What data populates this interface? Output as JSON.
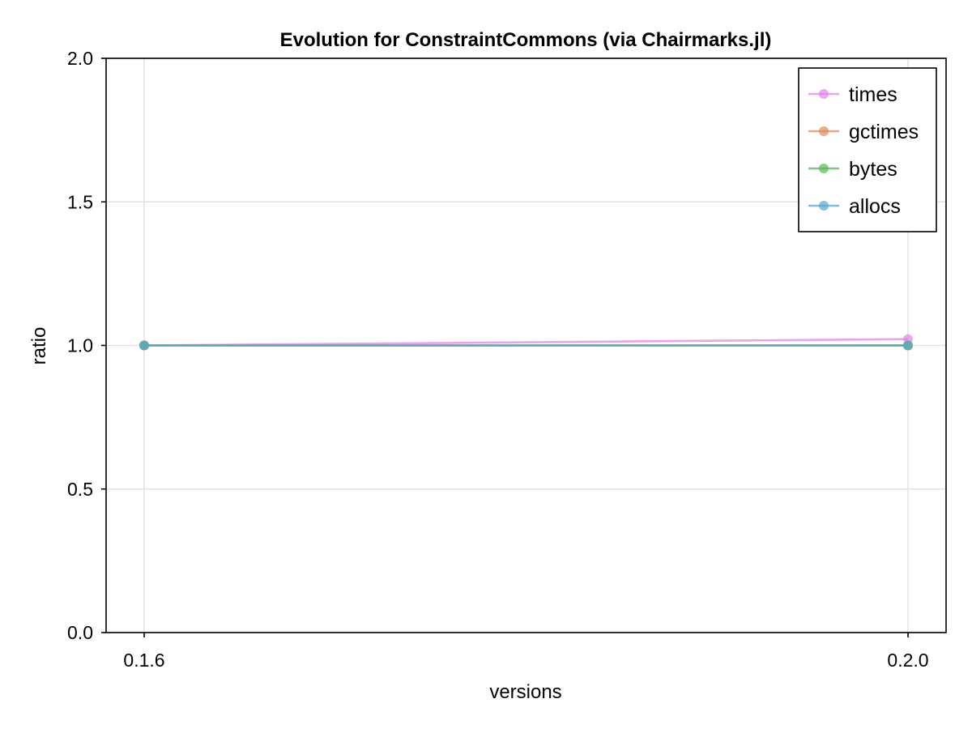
{
  "chart_data": {
    "type": "line",
    "title": "Evolution for ConstraintCommons (via Chairmarks.jl)",
    "xlabel": "versions",
    "ylabel": "ratio",
    "categories": [
      "0.1.6",
      "0.2.0"
    ],
    "ylim": [
      0,
      2
    ],
    "yticks": [
      "0.0",
      "0.5",
      "1.0",
      "1.5",
      "2.0"
    ],
    "ytick_values": [
      0,
      0.5,
      1.0,
      1.5,
      2.0
    ],
    "grid": true,
    "legend_position": "top-right",
    "series": [
      {
        "name": "times",
        "values": [
          1.0,
          1.022
        ],
        "color": "#e183e9"
      },
      {
        "name": "gctimes",
        "values": [
          1.0,
          1.0
        ],
        "color": "#e08a55"
      },
      {
        "name": "bytes",
        "values": [
          1.0,
          1.0
        ],
        "color": "#55b855"
      },
      {
        "name": "allocs",
        "values": [
          1.0,
          1.0
        ],
        "color": "#55a8cc"
      }
    ]
  }
}
